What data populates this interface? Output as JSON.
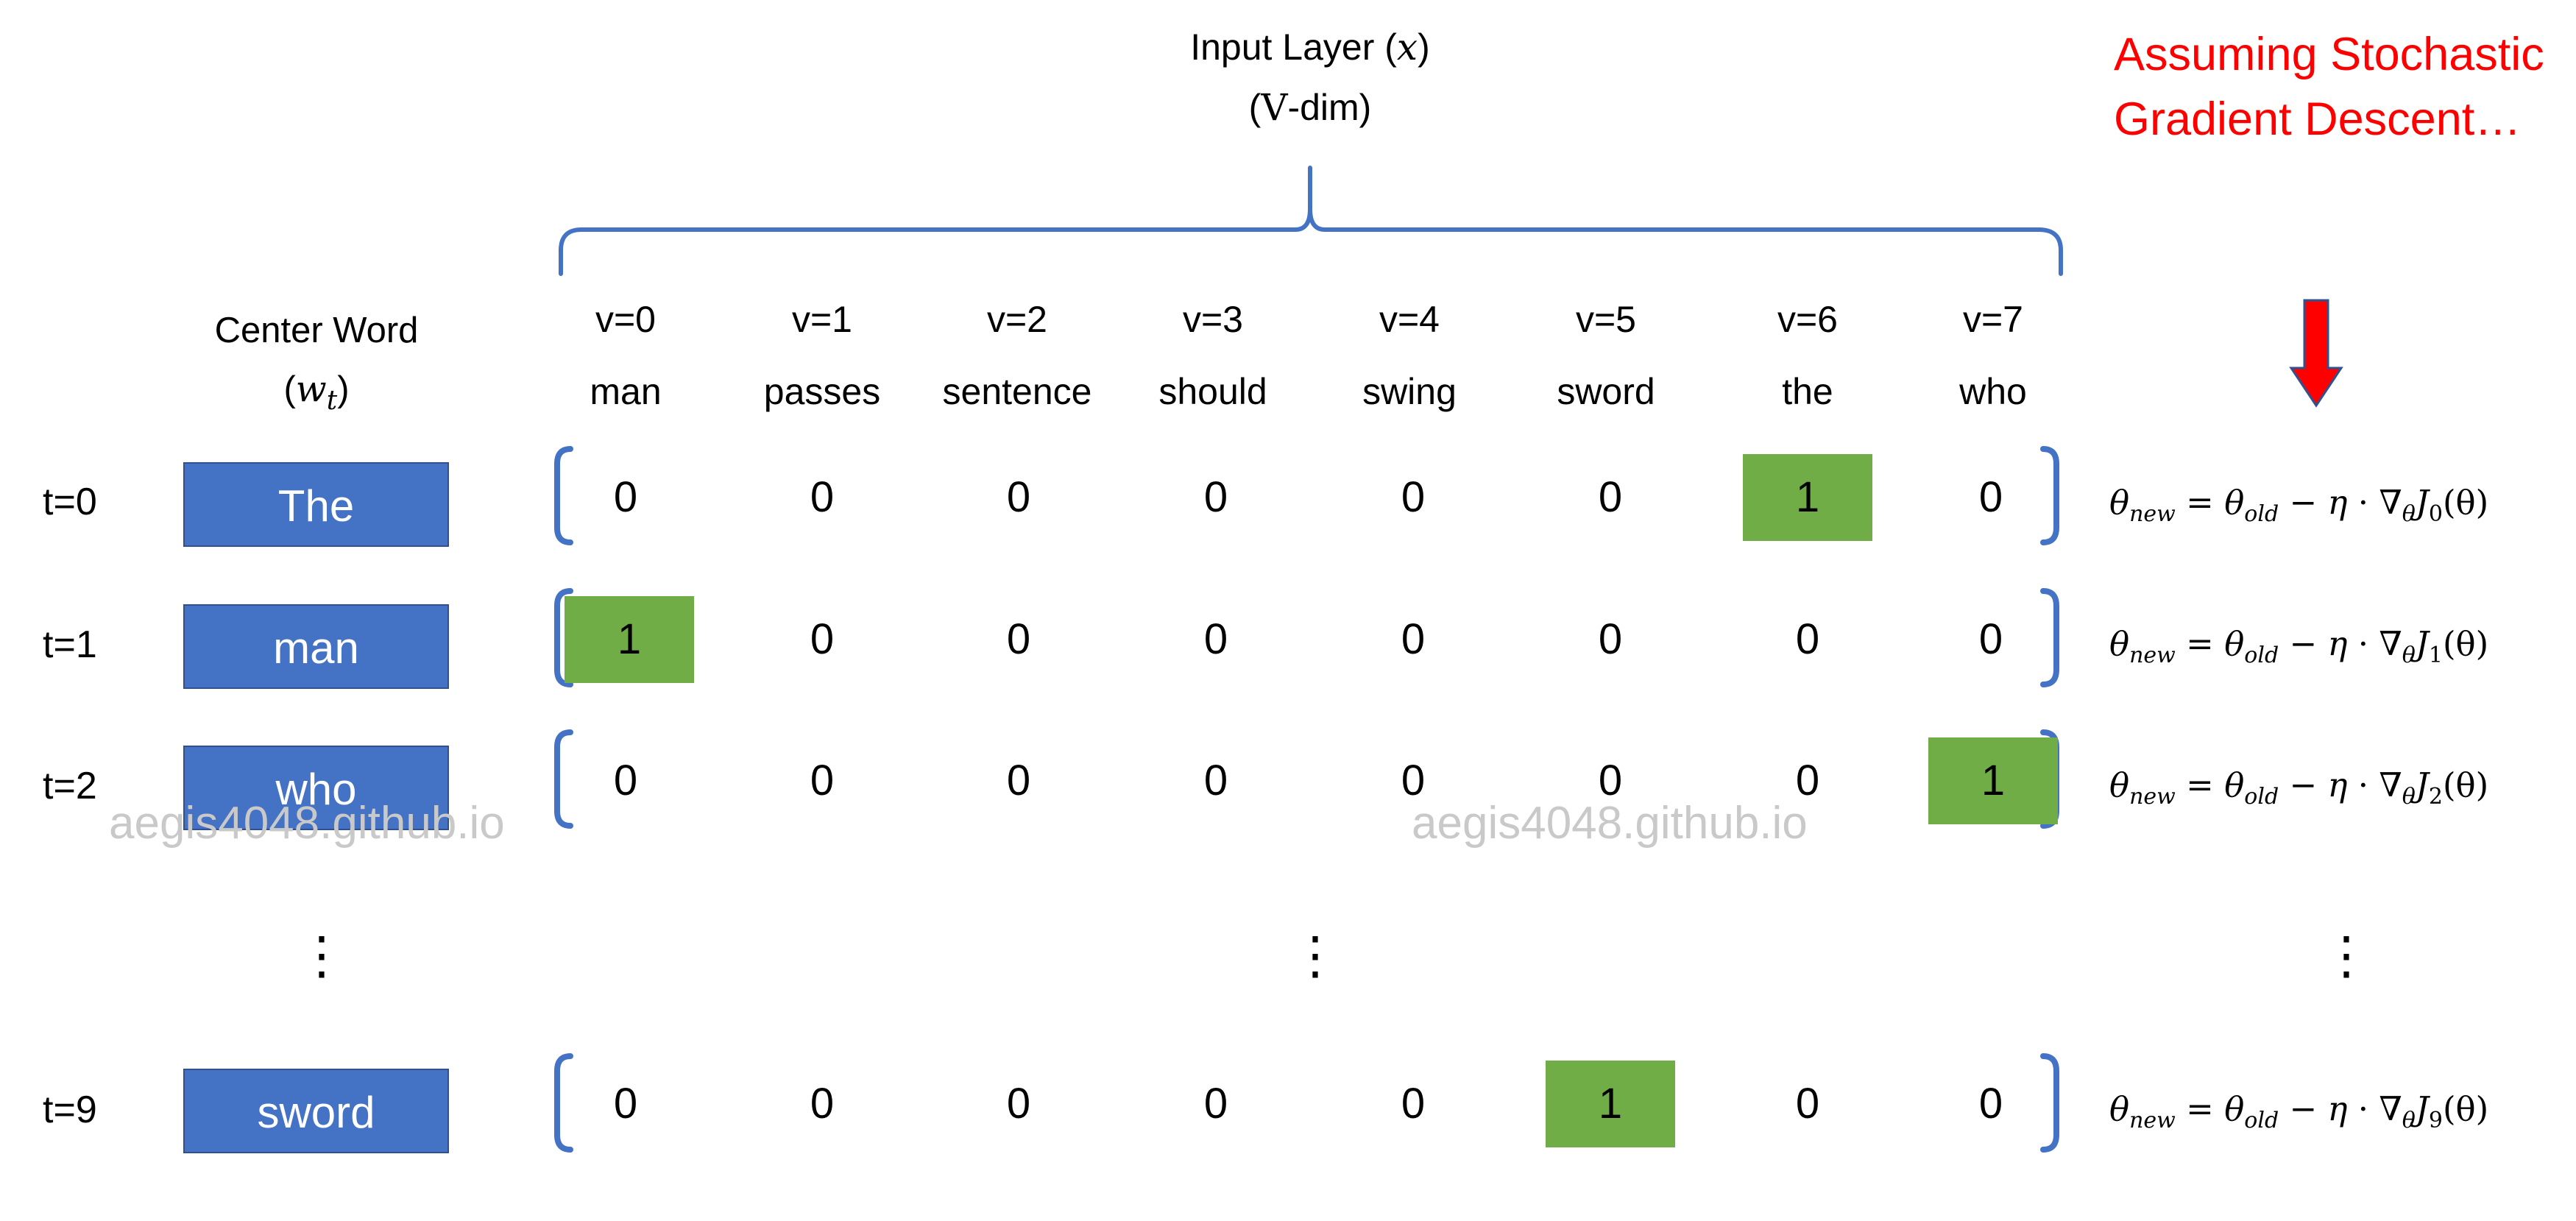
{
  "input_layer": {
    "title_text": "Input Layer (",
    "title_var": "x",
    "title_close": ")",
    "dim_open": "(",
    "dim_symbol": "V",
    "dim_rest": "-dim)"
  },
  "sgd_note": {
    "line1": "Assuming Stochastic",
    "line2": "Gradient Descent…",
    "color": "#ff0000"
  },
  "center_word": {
    "label": "Center Word",
    "symbol": "w",
    "subscript": "t"
  },
  "vocab": [
    {
      "index": "v=0",
      "word": "man"
    },
    {
      "index": "v=1",
      "word": "passes"
    },
    {
      "index": "v=2",
      "word": "sentence"
    },
    {
      "index": "v=3",
      "word": "should"
    },
    {
      "index": "v=4",
      "word": "swing"
    },
    {
      "index": "v=5",
      "word": "sword"
    },
    {
      "index": "v=6",
      "word": "the"
    },
    {
      "index": "v=7",
      "word": "who"
    }
  ],
  "rows": [
    {
      "t": "t=0",
      "word": "The",
      "vector": [
        "0",
        "0",
        "0",
        "0",
        "0",
        "0",
        "1",
        "0"
      ],
      "hot": 6,
      "eq_sub": "0"
    },
    {
      "t": "t=1",
      "word": "man",
      "vector": [
        "1",
        "0",
        "0",
        "0",
        "0",
        "0",
        "0",
        "0"
      ],
      "hot": 0,
      "eq_sub": "1"
    },
    {
      "t": "t=2",
      "word": "who",
      "vector": [
        "0",
        "0",
        "0",
        "0",
        "0",
        "0",
        "0",
        "1"
      ],
      "hot": 7,
      "eq_sub": "2"
    },
    {
      "t": "t=9",
      "word": "sword",
      "vector": [
        "0",
        "0",
        "0",
        "0",
        "0",
        "1",
        "0",
        "0"
      ],
      "hot": 5,
      "eq_sub": "9"
    }
  ],
  "equation": {
    "theta": "θ",
    "new": "new",
    "equals": " = ",
    "old": "old",
    "minus": " − ",
    "eta": "η",
    "dot": " · ",
    "nabla": "∇",
    "J": "J",
    "arg": "(θ)"
  },
  "ellipsis": "⋮",
  "watermark": "aegis4048.github.io",
  "colors": {
    "word_box": "#4472c4",
    "hot_cell": "#70ad47",
    "bracket": "#4472c4",
    "arrow": "#ff0000"
  }
}
